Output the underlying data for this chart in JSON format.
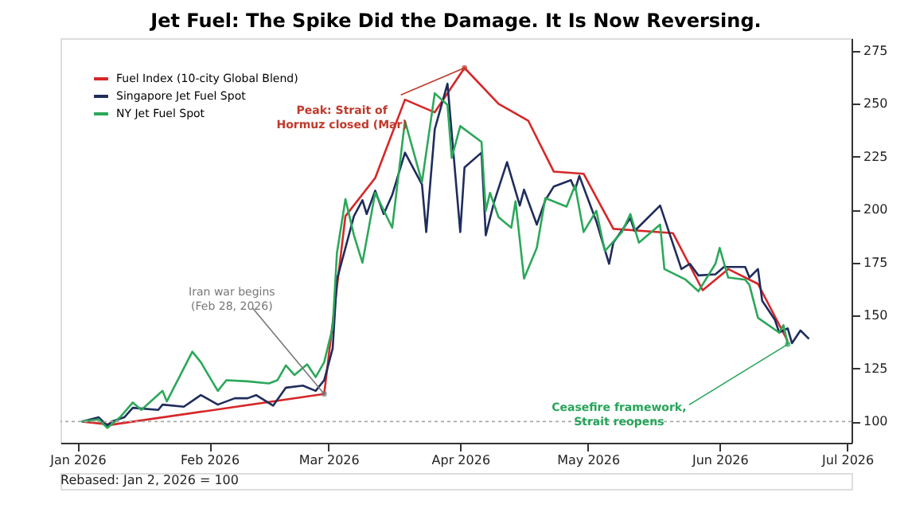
{
  "chart_data": {
    "type": "line",
    "title": "Jet Fuel: The Spike Did the Damage. It Is Now Reversing.",
    "series": [
      {
        "name": "Fuel Index (10-city Global Blend)",
        "color": "#d62728",
        "x": [
          "2026-01-02",
          "2026-01-09",
          "2026-02-28",
          "2026-03-05",
          "2026-03-12",
          "2026-03-19",
          "2026-03-26",
          "2026-04-02",
          "2026-04-10",
          "2026-04-17",
          "2026-04-23",
          "2026-04-30",
          "2026-05-07",
          "2026-05-21",
          "2026-05-28",
          "2026-06-03",
          "2026-06-10",
          "2026-06-17"
        ],
        "values": [
          100,
          98.5,
          113,
          197,
          215,
          252,
          246,
          267,
          250,
          242,
          218,
          217,
          191,
          189,
          162,
          172,
          165,
          138
        ]
      },
      {
        "name": "Singapore Jet Fuel Spot",
        "color": "#1f2d5c",
        "x": [
          "2026-01-02",
          "2026-01-06",
          "2026-01-08",
          "2026-01-09",
          "2026-01-12",
          "2026-01-14",
          "2026-01-20",
          "2026-01-21",
          "2026-01-26",
          "2026-01-30",
          "2026-02-03",
          "2026-02-07",
          "2026-02-10",
          "2026-02-12",
          "2026-02-16",
          "2026-02-19",
          "2026-02-23",
          "2026-02-26",
          "2026-02-28",
          "2026-03-02",
          "2026-03-03",
          "2026-03-05",
          "2026-03-07",
          "2026-03-09",
          "2026-03-10",
          "2026-03-12",
          "2026-03-14",
          "2026-03-16",
          "2026-03-19",
          "2026-03-23",
          "2026-03-24",
          "2026-03-26",
          "2026-03-29",
          "2026-04-01",
          "2026-04-02",
          "2026-04-06",
          "2026-04-07",
          "2026-04-09",
          "2026-04-12",
          "2026-04-15",
          "2026-04-16",
          "2026-04-19",
          "2026-04-21",
          "2026-04-23",
          "2026-04-27",
          "2026-04-28",
          "2026-04-29",
          "2026-05-03",
          "2026-05-06",
          "2026-05-07",
          "2026-05-11",
          "2026-05-12",
          "2026-05-18",
          "2026-05-23",
          "2026-05-25",
          "2026-05-27",
          "2026-05-31",
          "2026-06-02",
          "2026-06-07",
          "2026-06-08",
          "2026-06-10",
          "2026-06-11",
          "2026-06-14",
          "2026-06-15",
          "2026-06-17",
          "2026-06-18",
          "2026-06-20",
          "2026-06-22"
        ],
        "values": [
          100,
          102,
          98,
          100,
          102,
          106.5,
          105.5,
          108,
          107,
          112.5,
          108,
          111,
          111,
          112.5,
          107.5,
          116,
          117,
          114.5,
          119.5,
          134.5,
          167,
          182,
          197,
          204.5,
          198,
          209,
          198,
          207,
          227,
          212,
          189.5,
          238,
          259.5,
          189.5,
          220,
          227,
          188,
          204,
          222.5,
          202,
          209.5,
          193,
          204.5,
          211,
          214,
          209.5,
          216,
          194.5,
          174.5,
          184.5,
          196,
          190,
          202,
          172,
          174.5,
          169,
          169.5,
          173,
          173,
          168,
          172,
          157,
          148,
          142,
          144,
          137,
          143,
          139
        ]
      },
      {
        "name": "NY Jet Fuel Spot",
        "color": "#2ca85a",
        "x": [
          "2026-01-02",
          "2026-01-06",
          "2026-01-08",
          "2026-01-11",
          "2026-01-14",
          "2026-01-16",
          "2026-01-21",
          "2026-01-22",
          "2026-01-28",
          "2026-01-30",
          "2026-02-03",
          "2026-02-05",
          "2026-02-10",
          "2026-02-15",
          "2026-02-17",
          "2026-02-19",
          "2026-02-21",
          "2026-02-24",
          "2026-02-26",
          "2026-02-28",
          "2026-03-02",
          "2026-03-03",
          "2026-03-05",
          "2026-03-07",
          "2026-03-09",
          "2026-03-12",
          "2026-03-16",
          "2026-03-19",
          "2026-03-23",
          "2026-03-26",
          "2026-03-29",
          "2026-03-30",
          "2026-04-01",
          "2026-04-06",
          "2026-04-07",
          "2026-04-08",
          "2026-04-10",
          "2026-04-13",
          "2026-04-14",
          "2026-04-16",
          "2026-04-19",
          "2026-04-21",
          "2026-04-26",
          "2026-04-28",
          "2026-04-30",
          "2026-05-03",
          "2026-05-05",
          "2026-05-09",
          "2026-05-11",
          "2026-05-13",
          "2026-05-18",
          "2026-05-19",
          "2026-05-24",
          "2026-05-27",
          "2026-05-31",
          "2026-06-01",
          "2026-06-03",
          "2026-06-07",
          "2026-06-08",
          "2026-06-10",
          "2026-06-15",
          "2026-06-16",
          "2026-06-17"
        ],
        "values": [
          100,
          101,
          97,
          102,
          109,
          105.5,
          114.5,
          109.5,
          133,
          128,
          114.5,
          119.5,
          119,
          118,
          119.5,
          126.5,
          122,
          127,
          121,
          128,
          144.5,
          179.5,
          205,
          188,
          175,
          208,
          191.5,
          242,
          213,
          255,
          249.5,
          224.5,
          239.5,
          232,
          199.5,
          208,
          196.5,
          191.5,
          204,
          167.5,
          182,
          205.5,
          201.5,
          211.5,
          189.5,
          199.5,
          180.5,
          189.5,
          198,
          184.5,
          193,
          172,
          167,
          161.5,
          174.5,
          182,
          168,
          167,
          164.5,
          149,
          142,
          145.5,
          136.5
        ]
      }
    ],
    "xlim": [
      "2025-12-28",
      "2026-07-02"
    ],
    "xticks": [
      {
        "value": "2026-01-01",
        "label": "Jan 2026"
      },
      {
        "value": "2026-02-01",
        "label": "Feb 2026"
      },
      {
        "value": "2026-03-01",
        "label": "Mar 2026"
      },
      {
        "value": "2026-04-01",
        "label": "Apr 2026"
      },
      {
        "value": "2026-05-01",
        "label": "May 2026"
      },
      {
        "value": "2026-06-01",
        "label": "Jun 2026"
      },
      {
        "value": "2026-07-01",
        "label": "Jul 2026"
      }
    ],
    "ylim": [
      90,
      281
    ],
    "yticks": [
      100,
      125,
      150,
      175,
      200,
      225,
      250,
      275
    ],
    "ref_lines": [
      {
        "axis": "y",
        "value": 100,
        "color": "#aaaaaa",
        "line_style": "dotted"
      }
    ],
    "annotations": [
      {
        "text": "Peak: Strait of\nHormuz closed (Mar)",
        "x": "2026-04-02",
        "y": 267
      },
      {
        "text": "Iran war begins\n(Feb 28, 2026)",
        "x": "2026-02-28",
        "y": 113
      },
      {
        "text": "Ceasefire framework,\nStrait reopens",
        "x": "2026-06-17",
        "y": 136.5
      },
      "Rebased: Jan 2, 2026 = 100"
    ],
    "legend": "top left",
    "grid": false
  }
}
